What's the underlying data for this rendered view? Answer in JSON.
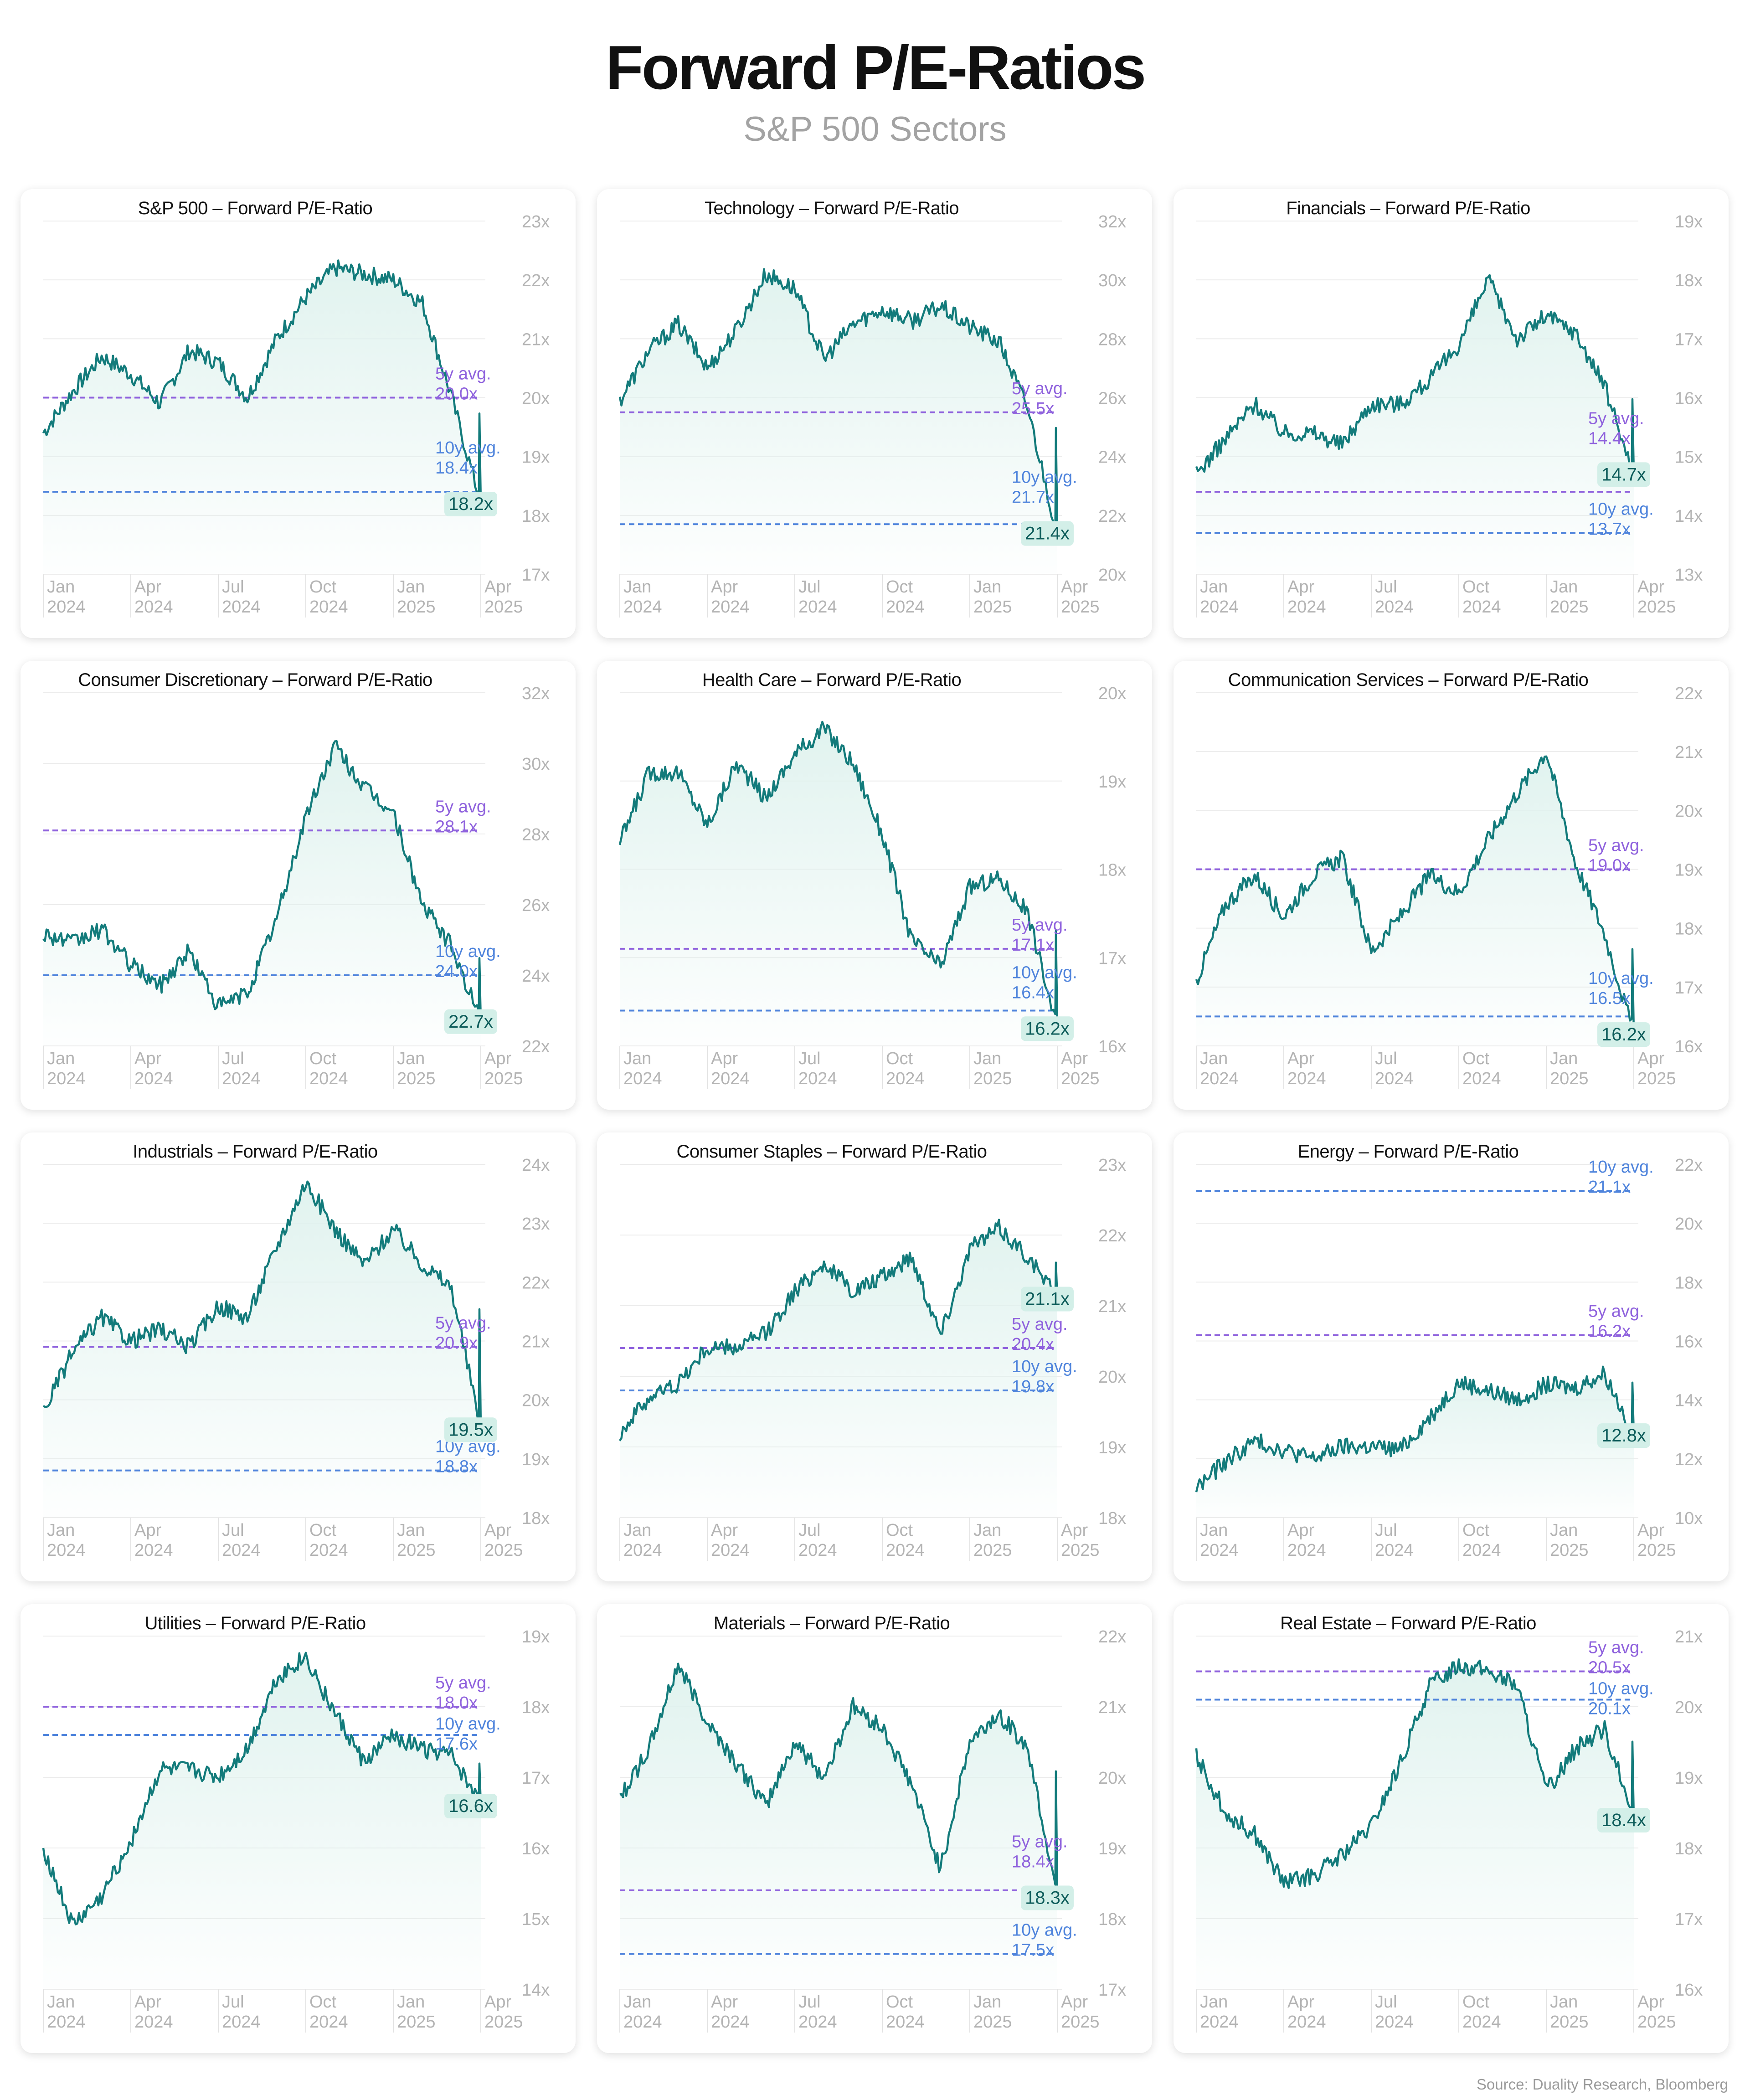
{
  "header": {
    "title": "Forward P/E-Ratios",
    "subtitle": "S&P 500 Sectors",
    "source": "Source: Duality Research, Bloomberg"
  },
  "colors": {
    "line": "#137b7b",
    "fill": "#dff2ee",
    "avg5": "#8f62dd",
    "avg10": "#4f84dc",
    "axis": "#b4b4b4",
    "grid": "#ececec",
    "badge_bg": "#d3efe8"
  },
  "chart_data": [
    {
      "type": "line",
      "title": "S&P 500 – Forward P/E-Ratio",
      "x_ticks": [
        [
          "Jan",
          "2024"
        ],
        [
          "Apr",
          "2024"
        ],
        [
          "Jul",
          "2024"
        ],
        [
          "Oct",
          "2024"
        ],
        [
          "Jan",
          "2025"
        ],
        [
          "Apr",
          "2025"
        ]
      ],
      "y_ticks": [
        "17x",
        "18x",
        "19x",
        "20x",
        "21x",
        "22x",
        "23x"
      ],
      "ylim": [
        17,
        23
      ],
      "grid": true,
      "x": [
        "Jan 2024",
        "Feb 2024",
        "Mar 2024",
        "Apr 2024",
        "May 2024",
        "Jun 2024",
        "Jul 2024",
        "Aug 2024",
        "Sep 2024",
        "Oct 2024",
        "Nov 2024",
        "Dec 2024",
        "Jan 2025",
        "Feb 2025",
        "Mar 2025",
        "Apr 2025"
      ],
      "values": [
        19.4,
        20.1,
        20.7,
        20.4,
        19.9,
        20.8,
        20.6,
        20.0,
        21.0,
        21.7,
        22.2,
        22.1,
        22.0,
        21.6,
        20.0,
        18.2
      ],
      "avg5": {
        "label": "5y avg.",
        "value_text": "20.0x",
        "value": 20.0
      },
      "avg10": {
        "label": "10y avg.",
        "value_text": "18.4x",
        "value": 18.4
      },
      "last": {
        "value": 18.2,
        "label": "18.2x"
      }
    },
    {
      "type": "line",
      "title": "Technology – Forward P/E-Ratio",
      "x_ticks": [
        [
          "Jan",
          "2024"
        ],
        [
          "Apr",
          "2024"
        ],
        [
          "Jul",
          "2024"
        ],
        [
          "Oct",
          "2024"
        ],
        [
          "Jan",
          "2025"
        ],
        [
          "Apr",
          "2025"
        ]
      ],
      "y_ticks": [
        "20x",
        "22x",
        "24x",
        "26x",
        "28x",
        "30x",
        "32x"
      ],
      "ylim": [
        20,
        32
      ],
      "grid": true,
      "x": [
        "Jan 2024",
        "Feb 2024",
        "Mar 2024",
        "Apr 2024",
        "May 2024",
        "Jun 2024",
        "Jul 2024",
        "Aug 2024",
        "Sep 2024",
        "Oct 2024",
        "Nov 2024",
        "Dec 2024",
        "Jan 2025",
        "Feb 2025",
        "Mar 2025",
        "Apr 2025"
      ],
      "values": [
        25.9,
        27.6,
        28.5,
        27.0,
        28.3,
        30.2,
        29.7,
        27.3,
        28.5,
        29.0,
        28.6,
        29.1,
        28.4,
        27.9,
        25.6,
        21.4
      ],
      "avg5": {
        "label": "5y avg.",
        "value_text": "25.5x",
        "value": 25.5
      },
      "avg10": {
        "label": "10y avg.",
        "value_text": "21.7x",
        "value": 21.7
      },
      "last": {
        "value": 21.4,
        "label": "21.4x"
      }
    },
    {
      "type": "line",
      "title": "Financials – Forward P/E-Ratio",
      "x_ticks": [
        [
          "Jan",
          "2024"
        ],
        [
          "Apr",
          "2024"
        ],
        [
          "Jul",
          "2024"
        ],
        [
          "Oct",
          "2024"
        ],
        [
          "Jan",
          "2025"
        ],
        [
          "Apr",
          "2025"
        ]
      ],
      "y_ticks": [
        "13x",
        "14x",
        "15x",
        "16x",
        "17x",
        "18x",
        "19x"
      ],
      "ylim": [
        13,
        19
      ],
      "grid": true,
      "x": [
        "Jan 2024",
        "Feb 2024",
        "Mar 2024",
        "Apr 2024",
        "May 2024",
        "Jun 2024",
        "Jul 2024",
        "Aug 2024",
        "Sep 2024",
        "Oct 2024",
        "Nov 2024",
        "Dec 2024",
        "Jan 2025",
        "Feb 2025",
        "Mar 2025",
        "Apr 2025"
      ],
      "values": [
        14.7,
        15.3,
        15.9,
        15.4,
        15.4,
        15.2,
        15.9,
        15.9,
        16.3,
        16.9,
        18.0,
        17.0,
        17.4,
        17.1,
        16.2,
        14.7
      ],
      "avg5": {
        "label": "5y avg.",
        "value_text": "14.4x",
        "value": 14.4
      },
      "avg10": {
        "label": "10y avg.",
        "value_text": "13.7x",
        "value": 13.7
      },
      "last": {
        "value": 14.7,
        "label": "14.7x"
      }
    },
    {
      "type": "line",
      "title": "Consumer Discretionary – Forward P/E-Ratio",
      "x_ticks": [
        [
          "Jan",
          "2024"
        ],
        [
          "Apr",
          "2024"
        ],
        [
          "Jul",
          "2024"
        ],
        [
          "Oct",
          "2024"
        ],
        [
          "Jan",
          "2025"
        ],
        [
          "Apr",
          "2025"
        ]
      ],
      "y_ticks": [
        "22x",
        "24x",
        "26x",
        "28x",
        "30x",
        "32x"
      ],
      "ylim": [
        22,
        32
      ],
      "grid": true,
      "x": [
        "Jan 2024",
        "Feb 2024",
        "Mar 2024",
        "Apr 2024",
        "May 2024",
        "Jun 2024",
        "Jul 2024",
        "Aug 2024",
        "Sep 2024",
        "Oct 2024",
        "Nov 2024",
        "Dec 2024",
        "Jan 2025",
        "Feb 2025",
        "Mar 2025",
        "Apr 2025"
      ],
      "values": [
        25.2,
        24.9,
        25.3,
        24.3,
        23.7,
        24.7,
        23.1,
        23.5,
        25.6,
        28.5,
        30.5,
        29.3,
        28.6,
        26.0,
        24.8,
        22.7
      ],
      "avg5": {
        "label": "5y avg.",
        "value_text": "28.1x",
        "value": 28.1
      },
      "avg10": {
        "label": "10y avg.",
        "value_text": "24.0x",
        "value": 24.0
      },
      "last": {
        "value": 22.7,
        "label": "22.7x"
      }
    },
    {
      "type": "line",
      "title": "Health Care – Forward P/E-Ratio",
      "x_ticks": [
        [
          "Jan",
          "2024"
        ],
        [
          "Apr",
          "2024"
        ],
        [
          "Jul",
          "2024"
        ],
        [
          "Oct",
          "2024"
        ],
        [
          "Jan",
          "2025"
        ],
        [
          "Apr",
          "2025"
        ]
      ],
      "y_ticks": [
        "16x",
        "17x",
        "18x",
        "19x",
        "20x"
      ],
      "ylim": [
        16,
        20
      ],
      "grid": true,
      "x": [
        "Jan 2024",
        "Feb 2024",
        "Mar 2024",
        "Apr 2024",
        "May 2024",
        "Jun 2024",
        "Jul 2024",
        "Aug 2024",
        "Sep 2024",
        "Oct 2024",
        "Nov 2024",
        "Dec 2024",
        "Jan 2025",
        "Feb 2025",
        "Mar 2025",
        "Apr 2025"
      ],
      "values": [
        18.3,
        19.1,
        19.1,
        18.5,
        19.2,
        18.8,
        19.3,
        19.6,
        19.2,
        18.4,
        17.2,
        16.9,
        17.8,
        17.9,
        17.5,
        16.2
      ],
      "avg5": {
        "label": "5y avg.",
        "value_text": "17.1x",
        "value": 17.1
      },
      "avg10": {
        "label": "10y avg.",
        "value_text": "16.4x",
        "value": 16.4
      },
      "last": {
        "value": 16.2,
        "label": "16.2x"
      }
    },
    {
      "type": "line",
      "title": "Communication Services – Forward P/E-Ratio",
      "x_ticks": [
        [
          "Jan",
          "2024"
        ],
        [
          "Apr",
          "2024"
        ],
        [
          "Jul",
          "2024"
        ],
        [
          "Oct",
          "2024"
        ],
        [
          "Jan",
          "2025"
        ],
        [
          "Apr",
          "2025"
        ]
      ],
      "y_ticks": [
        "16x",
        "17x",
        "18x",
        "19x",
        "20x",
        "21x",
        "22x"
      ],
      "ylim": [
        16,
        22
      ],
      "grid": true,
      "x": [
        "Jan 2024",
        "Feb 2024",
        "Mar 2024",
        "Apr 2024",
        "May 2024",
        "Jun 2024",
        "Jul 2024",
        "Aug 2024",
        "Sep 2024",
        "Oct 2024",
        "Nov 2024",
        "Dec 2024",
        "Jan 2025",
        "Feb 2025",
        "Mar 2025",
        "Apr 2025"
      ],
      "values": [
        17.1,
        18.4,
        18.9,
        18.2,
        18.9,
        19.2,
        17.6,
        18.2,
        18.9,
        18.6,
        19.5,
        20.3,
        21.0,
        19.1,
        17.9,
        16.2
      ],
      "avg5": {
        "label": "5y avg.",
        "value_text": "19.0x",
        "value": 19.0
      },
      "avg10": {
        "label": "10y avg.",
        "value_text": "16.5x",
        "value": 16.5
      },
      "last": {
        "value": 16.2,
        "label": "16.2x"
      }
    },
    {
      "type": "line",
      "title": "Industrials – Forward P/E-Ratio",
      "x_ticks": [
        [
          "Jan",
          "2024"
        ],
        [
          "Apr",
          "2024"
        ],
        [
          "Jul",
          "2024"
        ],
        [
          "Oct",
          "2024"
        ],
        [
          "Jan",
          "2025"
        ],
        [
          "Apr",
          "2025"
        ]
      ],
      "y_ticks": [
        "18x",
        "19x",
        "20x",
        "21x",
        "22x",
        "23x",
        "24x"
      ],
      "ylim": [
        18,
        24
      ],
      "grid": true,
      "x": [
        "Jan 2024",
        "Feb 2024",
        "Mar 2024",
        "Apr 2024",
        "May 2024",
        "Jun 2024",
        "Jul 2024",
        "Aug 2024",
        "Sep 2024",
        "Oct 2024",
        "Nov 2024",
        "Dec 2024",
        "Jan 2025",
        "Feb 2025",
        "Mar 2025",
        "Apr 2025"
      ],
      "values": [
        19.8,
        20.8,
        21.4,
        21.0,
        21.2,
        20.9,
        21.6,
        21.4,
        22.6,
        23.7,
        22.9,
        22.3,
        22.9,
        22.3,
        21.9,
        19.5
      ],
      "avg5": {
        "label": "5y avg.",
        "value_text": "20.9x",
        "value": 20.9
      },
      "avg10": {
        "label": "10y avg.",
        "value_text": "18.8x",
        "value": 18.8
      },
      "last": {
        "value": 19.5,
        "label": "19.5x"
      }
    },
    {
      "type": "line",
      "title": "Consumer Staples – Forward P/E-Ratio",
      "x_ticks": [
        [
          "Jan",
          "2024"
        ],
        [
          "Apr",
          "2024"
        ],
        [
          "Jul",
          "2024"
        ],
        [
          "Oct",
          "2024"
        ],
        [
          "Jan",
          "2025"
        ],
        [
          "Apr",
          "2025"
        ]
      ],
      "y_ticks": [
        "18x",
        "19x",
        "20x",
        "21x",
        "22x",
        "23x"
      ],
      "ylim": [
        18,
        23
      ],
      "grid": true,
      "x": [
        "Jan 2024",
        "Feb 2024",
        "Mar 2024",
        "Apr 2024",
        "May 2024",
        "Jun 2024",
        "Jul 2024",
        "Aug 2024",
        "Sep 2024",
        "Oct 2024",
        "Nov 2024",
        "Dec 2024",
        "Jan 2025",
        "Feb 2025",
        "Mar 2025",
        "Apr 2025"
      ],
      "values": [
        19.2,
        19.7,
        19.9,
        20.4,
        20.4,
        20.6,
        21.2,
        21.6,
        21.2,
        21.4,
        21.7,
        20.6,
        21.8,
        22.1,
        21.7,
        21.1
      ],
      "avg5": {
        "label": "5y avg.",
        "value_text": "20.4x",
        "value": 20.4
      },
      "avg10": {
        "label": "10y avg.",
        "value_text": "19.8x",
        "value": 19.8
      },
      "last": {
        "value": 21.1,
        "label": "21.1x"
      }
    },
    {
      "type": "line",
      "title": "Energy – Forward P/E-Ratio",
      "x_ticks": [
        [
          "Jan",
          "2024"
        ],
        [
          "Apr",
          "2024"
        ],
        [
          "Jul",
          "2024"
        ],
        [
          "Oct",
          "2024"
        ],
        [
          "Jan",
          "2025"
        ],
        [
          "Apr",
          "2025"
        ]
      ],
      "y_ticks": [
        "10x",
        "12x",
        "14x",
        "16x",
        "18x",
        "20x",
        "22x"
      ],
      "ylim": [
        10,
        22
      ],
      "grid": true,
      "x": [
        "Jan 2024",
        "Feb 2024",
        "Mar 2024",
        "Apr 2024",
        "May 2024",
        "Jun 2024",
        "Jul 2024",
        "Aug 2024",
        "Sep 2024",
        "Oct 2024",
        "Nov 2024",
        "Dec 2024",
        "Jan 2025",
        "Feb 2025",
        "Mar 2025",
        "Apr 2025"
      ],
      "values": [
        11.0,
        11.9,
        12.6,
        12.3,
        12.0,
        12.4,
        12.4,
        12.3,
        13.4,
        14.6,
        14.3,
        14.0,
        14.5,
        14.4,
        14.9,
        12.8
      ],
      "avg5": {
        "label": "5y avg.",
        "value_text": "16.2x",
        "value": 16.2
      },
      "avg10": {
        "label": "10y avg.",
        "value_text": "21.1x",
        "value": 21.1
      },
      "last": {
        "value": 12.8,
        "label": "12.8x"
      }
    },
    {
      "type": "line",
      "title": "Utilities – Forward P/E-Ratio",
      "x_ticks": [
        [
          "Jan",
          "2024"
        ],
        [
          "Apr",
          "2024"
        ],
        [
          "Jul",
          "2024"
        ],
        [
          "Oct",
          "2024"
        ],
        [
          "Jan",
          "2025"
        ],
        [
          "Apr",
          "2025"
        ]
      ],
      "y_ticks": [
        "14x",
        "15x",
        "16x",
        "17x",
        "18x",
        "19x"
      ],
      "ylim": [
        14,
        19
      ],
      "grid": true,
      "x": [
        "Jan 2024",
        "Feb 2024",
        "Mar 2024",
        "Apr 2024",
        "May 2024",
        "Jun 2024",
        "Jul 2024",
        "Aug 2024",
        "Sep 2024",
        "Oct 2024",
        "Nov 2024",
        "Dec 2024",
        "Jan 2025",
        "Feb 2025",
        "Mar 2025",
        "Apr 2025"
      ],
      "values": [
        16.0,
        14.9,
        15.3,
        16.1,
        17.1,
        17.1,
        17.0,
        17.4,
        18.4,
        18.7,
        17.9,
        17.2,
        17.6,
        17.4,
        17.3,
        16.6
      ],
      "avg5": {
        "label": "5y avg.",
        "value_text": "18.0x",
        "value": 18.0
      },
      "avg10": {
        "label": "10y avg.",
        "value_text": "17.6x",
        "value": 17.6
      },
      "last": {
        "value": 16.6,
        "label": "16.6x"
      }
    },
    {
      "type": "line",
      "title": "Materials – Forward P/E-Ratio",
      "x_ticks": [
        [
          "Jan",
          "2024"
        ],
        [
          "Apr",
          "2024"
        ],
        [
          "Jul",
          "2024"
        ],
        [
          "Oct",
          "2024"
        ],
        [
          "Jan",
          "2025"
        ],
        [
          "Apr",
          "2025"
        ]
      ],
      "y_ticks": [
        "17x",
        "18x",
        "19x",
        "20x",
        "21x",
        "22x"
      ],
      "ylim": [
        17,
        22
      ],
      "grid": true,
      "x": [
        "Jan 2024",
        "Feb 2024",
        "Mar 2024",
        "Apr 2024",
        "May 2024",
        "Jun 2024",
        "Jul 2024",
        "Aug 2024",
        "Sep 2024",
        "Oct 2024",
        "Nov 2024",
        "Dec 2024",
        "Jan 2025",
        "Feb 2025",
        "Mar 2025",
        "Apr 2025"
      ],
      "values": [
        19.7,
        20.4,
        21.6,
        20.8,
        20.2,
        19.6,
        20.5,
        20.0,
        21.0,
        20.7,
        19.9,
        18.7,
        20.5,
        20.9,
        20.4,
        18.3
      ],
      "avg5": {
        "label": "5y avg.",
        "value_text": "18.4x",
        "value": 18.4
      },
      "avg10": {
        "label": "10y avg.",
        "value_text": "17.5x",
        "value": 17.5
      },
      "last": {
        "value": 18.3,
        "label": "18.3x"
      }
    },
    {
      "type": "line",
      "title": "Real Estate – Forward P/E-Ratio",
      "x_ticks": [
        [
          "Jan",
          "2024"
        ],
        [
          "Apr",
          "2024"
        ],
        [
          "Jul",
          "2024"
        ],
        [
          "Oct",
          "2024"
        ],
        [
          "Jan",
          "2025"
        ],
        [
          "Apr",
          "2025"
        ]
      ],
      "y_ticks": [
        "16x",
        "17x",
        "18x",
        "19x",
        "20x",
        "21x"
      ],
      "ylim": [
        16,
        21
      ],
      "grid": true,
      "x": [
        "Jan 2024",
        "Feb 2024",
        "Mar 2024",
        "Apr 2024",
        "May 2024",
        "Jun 2024",
        "Jul 2024",
        "Aug 2024",
        "Sep 2024",
        "Oct 2024",
        "Nov 2024",
        "Dec 2024",
        "Jan 2025",
        "Feb 2025",
        "Mar 2025",
        "Apr 2025"
      ],
      "values": [
        19.3,
        18.5,
        18.2,
        17.5,
        17.6,
        17.9,
        18.3,
        19.2,
        20.3,
        20.6,
        20.5,
        20.3,
        18.8,
        19.4,
        19.7,
        18.4
      ],
      "avg5": {
        "label": "5y avg.",
        "value_text": "20.5x",
        "value": 20.5
      },
      "avg10": {
        "label": "10y avg.",
        "value_text": "20.1x",
        "value": 20.1
      },
      "last": {
        "value": 18.4,
        "label": "18.4x"
      }
    }
  ]
}
